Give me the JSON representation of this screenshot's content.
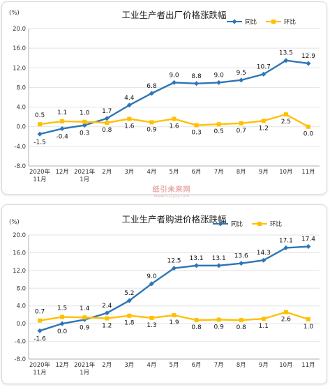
{
  "colors": {
    "yoy": "#2e75b6",
    "mom": "#ffc000",
    "grid": "#e2e2e2",
    "axis": "#b0b0b0"
  },
  "watermark": {
    "main": "纸引未来网",
    "sub": "www.51zyzy.com"
  },
  "chart_data": [
    {
      "type": "line",
      "title": "工业生产者出厂价格涨跌幅",
      "unit": "(%)",
      "categories": [
        "2020年|11月",
        "12月",
        "2021年|1月",
        "2月",
        "3月",
        "4月",
        "5月",
        "6月",
        "7月",
        "8月",
        "9月",
        "10月",
        "11月"
      ],
      "ylim": [
        -8.0,
        20.0
      ],
      "yticks": [
        "20.0",
        "16.0",
        "12.0",
        "8.0",
        "4.0",
        "0.0",
        "-4.0",
        "-8.0"
      ],
      "grid": true,
      "legend": "top-right",
      "series": [
        {
          "name": "同比",
          "key": "yoy",
          "values": [
            -1.5,
            -0.4,
            0.3,
            1.7,
            4.4,
            6.8,
            9.0,
            8.8,
            9.0,
            9.5,
            10.7,
            13.5,
            12.9
          ],
          "labels": [
            "-1.5",
            "-0.4",
            "0.3",
            "1.7",
            "4.4",
            "6.8",
            "9.0",
            "8.8",
            "9.0",
            "9.5",
            "10.7",
            "13.5",
            "12.9"
          ]
        },
        {
          "name": "环比",
          "key": "mom",
          "values": [
            0.5,
            1.1,
            1.0,
            0.8,
            1.6,
            0.9,
            1.6,
            0.3,
            0.5,
            0.7,
            1.2,
            2.5,
            0.0
          ],
          "labels": [
            "0.5",
            "1.1",
            "1.0",
            "0.8",
            "1.6",
            "0.9",
            "1.6",
            "0.3",
            "0.5",
            "0.7",
            "1.2",
            "2.5",
            "0.0"
          ]
        }
      ]
    },
    {
      "type": "line",
      "title": "工业生产者购进价格涨跌幅",
      "unit": "(%)",
      "categories": [
        "2020年|11月",
        "12月",
        "2021年|1月",
        "2月",
        "3月",
        "4月",
        "5月",
        "6月",
        "7月",
        "8月",
        "9月",
        "10月",
        "11月"
      ],
      "ylim": [
        -8.0,
        20.0
      ],
      "yticks": [
        "20.0",
        "16.0",
        "12.0",
        "8.0",
        "4.0",
        "0.0",
        "-4.0",
        "-8.0"
      ],
      "grid": true,
      "legend": "top-right",
      "series": [
        {
          "name": "同比",
          "key": "yoy",
          "values": [
            -1.6,
            0.0,
            0.9,
            2.4,
            5.2,
            9.0,
            12.5,
            13.1,
            13.1,
            13.6,
            14.3,
            17.1,
            17.4
          ],
          "labels": [
            "-1.6",
            "0.0",
            "0.9",
            "2.4",
            "5.2",
            "9.0",
            "12.5",
            "13.1",
            "13.1",
            "13.6",
            "14.3",
            "17.1",
            "17.4"
          ]
        },
        {
          "name": "环比",
          "key": "mom",
          "values": [
            0.7,
            1.5,
            1.4,
            1.2,
            1.8,
            1.3,
            1.9,
            0.8,
            0.9,
            0.8,
            1.1,
            2.6,
            1.0
          ],
          "labels": [
            "0.7",
            "1.5",
            "1.4",
            "1.2",
            "1.8",
            "1.3",
            "1.9",
            "0.8",
            "0.9",
            "0.8",
            "1.1",
            "2.6",
            "1.0"
          ]
        }
      ]
    }
  ]
}
